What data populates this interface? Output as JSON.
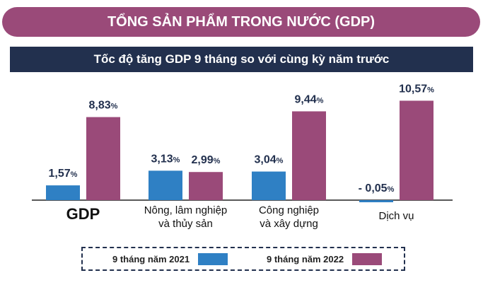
{
  "header": {
    "title": "TỔNG SẢN PHẨM TRONG NƯỚC (GDP)",
    "subtitle": "Tốc độ tăng GDP 9 tháng so với cùng kỳ năm trước"
  },
  "colors": {
    "series_2021": "#2f80c4",
    "series_2022": "#9a4a79",
    "label": "#22304e"
  },
  "chart_data": {
    "type": "bar",
    "unit": "%",
    "categories": [
      [
        "GDP"
      ],
      [
        "Nông, lâm nghiệp",
        "và thủy sản"
      ],
      [
        "Công nghiệp",
        "và xây dựng"
      ],
      [
        "Dịch vụ"
      ]
    ],
    "series": [
      {
        "name": "9 tháng năm 2021",
        "values": [
          1.57,
          3.13,
          3.04,
          -0.05
        ],
        "labels": [
          "1,57",
          "3,13",
          "3,04",
          "- 0,05"
        ]
      },
      {
        "name": "9 tháng năm 2022",
        "values": [
          8.83,
          2.99,
          9.44,
          10.57
        ],
        "labels": [
          "8,83",
          "2,99",
          "9,44",
          "10,57"
        ]
      }
    ],
    "ylim": [
      -0.5,
      11.5
    ],
    "legend": "bottom"
  }
}
